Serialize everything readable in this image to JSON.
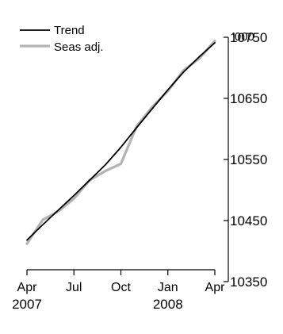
{
  "chart_data": {
    "type": "line",
    "title": "",
    "xlabel": "",
    "ylabel": "",
    "unit_label": "'000",
    "x_ticks": [
      {
        "line1": "Apr",
        "line2": "2007"
      },
      {
        "line1": "Jul",
        "line2": ""
      },
      {
        "line1": "Oct",
        "line2": ""
      },
      {
        "line1": "Jan",
        "line2": "2008"
      },
      {
        "line1": "Apr",
        "line2": ""
      }
    ],
    "x": [
      "Apr 2007",
      "May 2007",
      "Jun 2007",
      "Jul 2007",
      "Aug 2007",
      "Sep 2007",
      "Oct 2007",
      "Nov 2007",
      "Dec 2007",
      "Jan 2008",
      "Feb 2008",
      "Mar 2008",
      "Apr 2008"
    ],
    "y_ticks": [
      "10350",
      "10450",
      "10550",
      "10650",
      "10750"
    ],
    "ylim": [
      10350,
      10750
    ],
    "grid": false,
    "legend_position": "top-left",
    "series": [
      {
        "name": "Trend",
        "color": "#000000",
        "values": [
          10418,
          10443,
          10467,
          10491,
          10516,
          10541,
          10570,
          10602,
          10633,
          10664,
          10693,
          10718,
          10741
        ]
      },
      {
        "name": "Seas adj.",
        "color": "#b3b3b3",
        "values": [
          10412,
          10451,
          10465,
          10486,
          10516,
          10531,
          10543,
          10604,
          10636,
          10662,
          10696,
          10715,
          10744
        ]
      }
    ]
  }
}
